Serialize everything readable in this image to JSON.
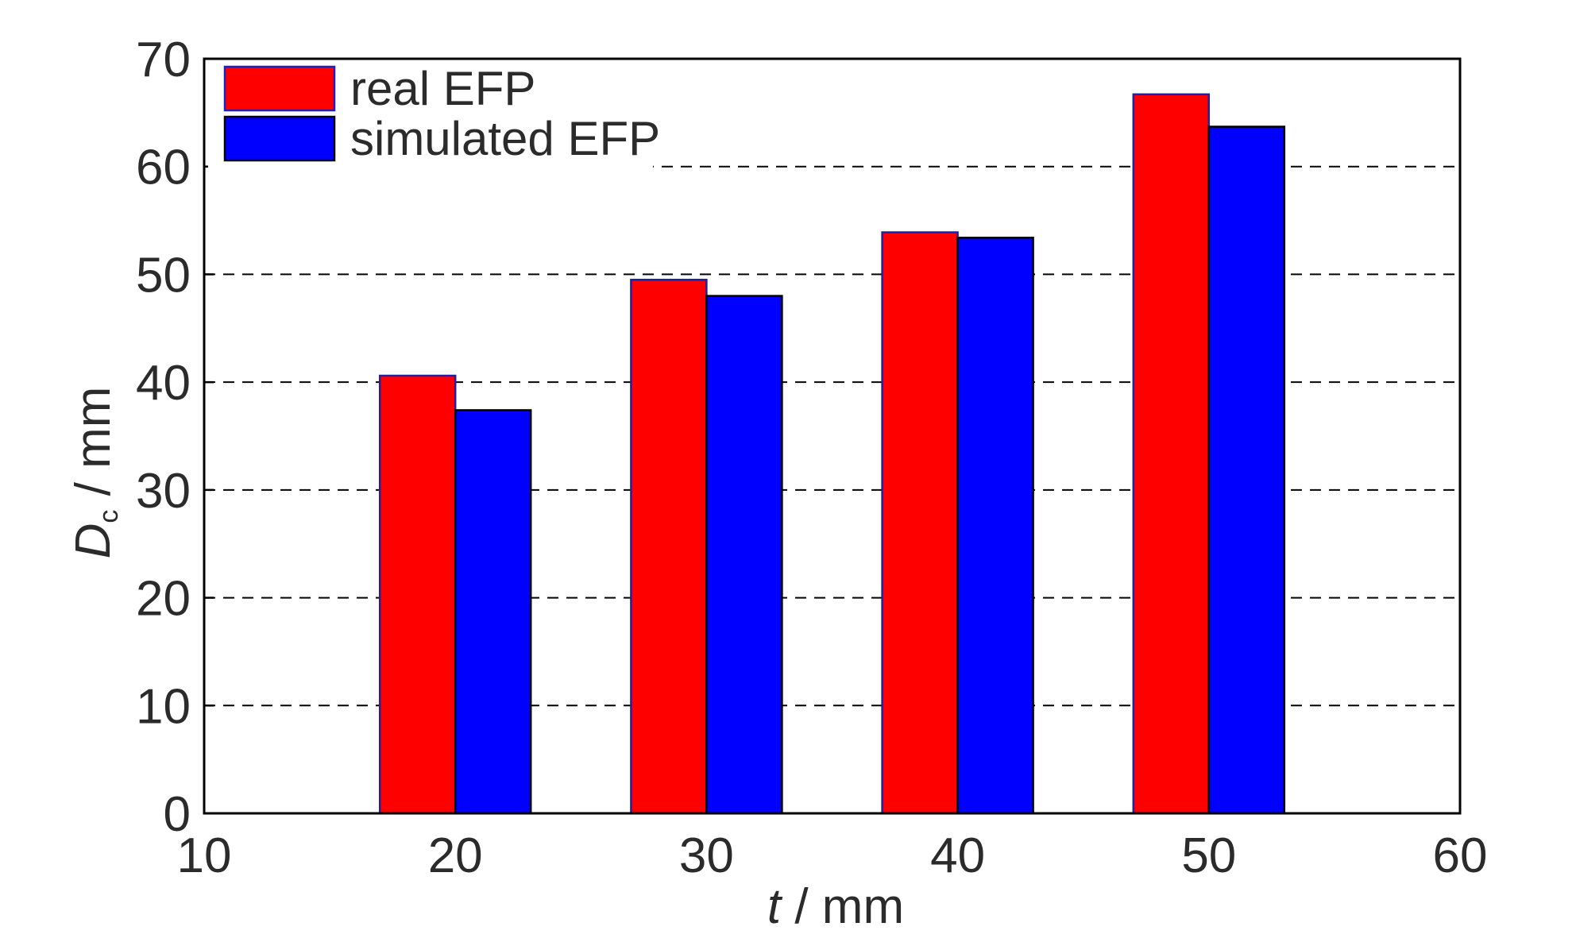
{
  "chart_data": {
    "type": "bar",
    "x": [
      20,
      30,
      40,
      50
    ],
    "series": [
      {
        "name": "real EFP",
        "values": [
          40.6,
          49.5,
          53.9,
          66.7
        ]
      },
      {
        "name": "simulated EFP",
        "values": [
          37.4,
          48.0,
          53.4,
          63.7
        ]
      }
    ],
    "xlabel": {
      "italic": "t",
      "rest": " / mm"
    },
    "ylabel": {
      "italic": "D",
      "sub": "c",
      "rest": " / mm"
    },
    "xlim": [
      10,
      60
    ],
    "ylim": [
      0,
      70
    ],
    "xticks": [
      "10",
      "20",
      "30",
      "40",
      "50",
      "60"
    ],
    "yticks": [
      "0",
      "10",
      "20",
      "30",
      "40",
      "50",
      "60",
      "70"
    ],
    "grid": {
      "y": true,
      "style": "dashed"
    },
    "legend": "top-left",
    "colors": {
      "real EFP": "#ff0000",
      "simulated EFP": "#0000ff",
      "bar_edge_real": "#2020a0",
      "bar_edge_sim": "#000000"
    }
  }
}
